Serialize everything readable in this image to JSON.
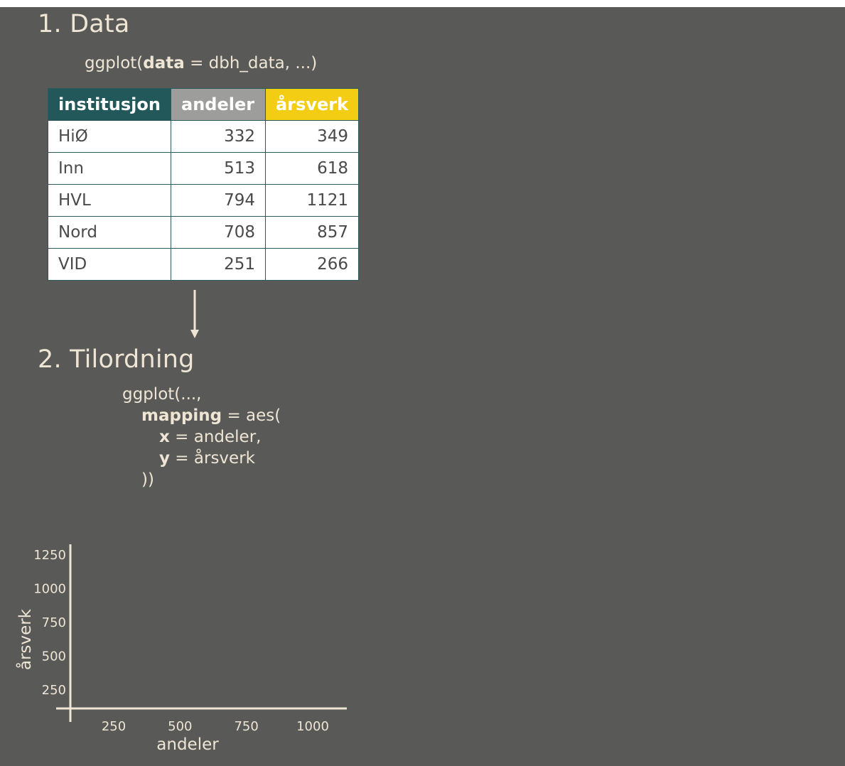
{
  "section1": {
    "heading": "1. Data",
    "code": {
      "prefix": "ggplot(",
      "arg": "data",
      "suffix": " = dbh_data, ...)"
    }
  },
  "table": {
    "headers": [
      "institusjon",
      "andeler",
      "årsverk"
    ],
    "header_colors": [
      "#23585a",
      "#9d9d9b",
      "#f2cd14"
    ],
    "rows": [
      [
        "HiØ",
        "332",
        "349"
      ],
      [
        "Inn",
        "513",
        "618"
      ],
      [
        "HVL",
        "794",
        "1121"
      ],
      [
        "Nord",
        "708",
        "857"
      ],
      [
        "VID",
        "251",
        "266"
      ]
    ]
  },
  "section2": {
    "heading": "2. Tilordning",
    "code": {
      "line1": "ggplot(...,",
      "mapping_kw": "mapping",
      "mapping_rest": " = aes(",
      "x_kw": "x",
      "x_rest": " = andeler,",
      "y_kw": "y",
      "y_rest": " = årsverk",
      "close": "))"
    }
  },
  "chart_data": {
    "type": "scatter",
    "xlabel": "andeler",
    "ylabel": "årsverk",
    "x_ticks": [
      250,
      500,
      750,
      1000
    ],
    "y_ticks": [
      250,
      500,
      750,
      1000,
      1250
    ],
    "x": [],
    "y": []
  },
  "colors": {
    "background": "#595957",
    "text": "#eee5d5",
    "accent_teal": "#23585a",
    "accent_yellow": "#f2cd14"
  }
}
